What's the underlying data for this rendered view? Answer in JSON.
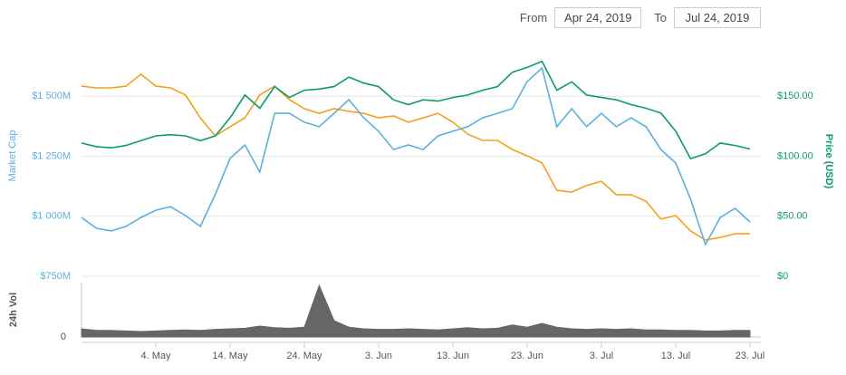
{
  "header": {
    "from_label": "From",
    "from_value": "Apr 24, 2019",
    "to_label": "To",
    "to_value": "Jul 24, 2019"
  },
  "chart_data": [
    {
      "type": "line",
      "categories": [
        null,
        null,
        null,
        null,
        null,
        "4. May",
        null,
        null,
        null,
        null,
        "14. May",
        null,
        null,
        null,
        null,
        "24. May",
        null,
        null,
        null,
        null,
        "3. Jun",
        null,
        null,
        null,
        null,
        "13. Jun",
        null,
        null,
        null,
        null,
        "23. Jun",
        null,
        null,
        null,
        null,
        "3. Jul",
        null,
        null,
        null,
        null,
        "13. Jul",
        null,
        null,
        null,
        null,
        "23. Jul"
      ],
      "y_label": "Market Cap",
      "y2_label": "Price (USD)",
      "ylim": [
        750,
        1750
      ],
      "yticks": [
        {
          "value": 750,
          "label": "$750M"
        },
        {
          "value": 1000,
          "label": "$1 000M"
        },
        {
          "value": 1250,
          "label": "$1 250M"
        },
        {
          "value": 1500,
          "label": "$1 500M"
        }
      ],
      "y2lim": [
        0,
        200
      ],
      "y2ticks": [
        {
          "value": 0,
          "label": "$0"
        },
        {
          "value": 50,
          "label": "$50.00"
        },
        {
          "value": 100,
          "label": "$100.00"
        },
        {
          "value": 150,
          "label": "$150.00"
        }
      ],
      "grid": true,
      "series": [
        {
          "color": "#f5a01a",
          "values": [
            1542,
            1535,
            1535,
            1542,
            1592,
            1542,
            1535,
            1505,
            1410,
            1335,
            1373,
            1410,
            1505,
            1542,
            1486,
            1448,
            1429,
            1448,
            1437,
            1429,
            1410,
            1418,
            1392,
            1410,
            1429,
            1392,
            1342,
            1316,
            1316,
            1278,
            1252,
            1222,
            1108,
            1101,
            1128,
            1146,
            1090,
            1090,
            1063,
            988,
            1003,
            939,
            901,
            912,
            927,
            927
          ]
        },
        {
          "name": "Market Cap",
          "color": "#5cb0de",
          "values": [
            995,
            950,
            939,
            958,
            995,
            1025,
            1040,
            1003,
            958,
            1090,
            1241,
            1297,
            1184,
            1429,
            1429,
            1392,
            1373,
            1429,
            1486,
            1410,
            1354,
            1278,
            1297,
            1278,
            1335,
            1354,
            1373,
            1410,
            1429,
            1448,
            1561,
            1618,
            1373,
            1448,
            1373,
            1429,
            1373,
            1410,
            1373,
            1278,
            1222,
            1071,
            882,
            995,
            1033,
            976
          ]
        },
        {
          "name": "Price (USD)",
          "color": "#0e9a6a",
          "axis": "y2",
          "values": [
            111,
            108,
            107,
            109,
            113,
            117,
            118,
            117,
            113,
            117,
            132,
            151,
            140,
            158,
            149,
            155,
            156,
            158,
            166,
            161,
            158,
            147,
            143,
            147,
            146,
            149,
            151,
            155,
            158,
            170,
            174,
            179,
            155,
            162,
            151,
            149,
            147,
            143,
            140,
            136,
            121,
            98,
            102,
            111,
            109,
            106
          ]
        }
      ]
    },
    {
      "type": "area",
      "y_label": "24h Vol",
      "ylim": [
        0,
        100
      ],
      "yticks": [
        0
      ],
      "series": [
        {
          "color": "#666666",
          "values": [
            15,
            12,
            12,
            11,
            10,
            11,
            12,
            13,
            12,
            14,
            15,
            16,
            20,
            17,
            16,
            18,
            95,
            30,
            18,
            15,
            14,
            14,
            15,
            14,
            13,
            15,
            17,
            15,
            16,
            22,
            18,
            25,
            18,
            15,
            14,
            15,
            14,
            15,
            13,
            13,
            12,
            12,
            11,
            11,
            12,
            12
          ]
        }
      ]
    }
  ]
}
